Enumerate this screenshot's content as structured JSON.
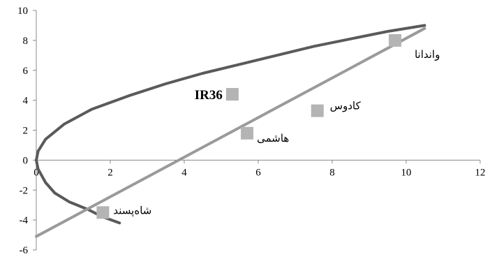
{
  "chart_data": {
    "type": "scatter",
    "title": "",
    "xlabel": "",
    "ylabel": "",
    "xlim": [
      0,
      12
    ],
    "ylim": [
      -6,
      10
    ],
    "xticks": [
      "0",
      "2",
      "4",
      "6",
      "8",
      "10",
      "12"
    ],
    "yticks": [
      "10",
      "8",
      "6",
      "4",
      "2",
      "0",
      "-2",
      "-4",
      "-6"
    ],
    "grid": false,
    "legend": "none",
    "points": [
      {
        "label": "واندانا",
        "x": 9.7,
        "y": 8.0
      },
      {
        "label": "IR36",
        "x": 5.3,
        "y": 4.4
      },
      {
        "label": "کادوس",
        "x": 7.6,
        "y": 3.3
      },
      {
        "label": "هاشمی",
        "x": 5.7,
        "y": 1.8
      },
      {
        "label": "شاه‌پسند",
        "x": 1.8,
        "y": -3.5
      }
    ],
    "series": [
      {
        "type": "curve",
        "color": "#5a5a5a",
        "x": [
          2.25,
          1.8,
          1.4,
          0.9,
          0.5,
          0.25,
          0.05,
          0,
          0.05,
          0.25,
          0.75,
          1.5,
          2.5,
          3.5,
          4.5,
          5.5,
          6.5,
          7.5,
          8.5,
          9.5,
          10.5
        ],
        "y": [
          -4.2,
          -3.8,
          -3.3,
          -2.8,
          -2.2,
          -1.5,
          -0.6,
          0,
          0.6,
          1.4,
          2.4,
          3.4,
          4.3,
          5.1,
          5.8,
          6.4,
          7.0,
          7.6,
          8.1,
          8.6,
          9.0
        ]
      },
      {
        "type": "line",
        "color": "#9a9a9a",
        "x": [
          0,
          10.5
        ],
        "y": [
          -5.1,
          8.8
        ]
      }
    ],
    "marker_color": "#b4b4b4"
  }
}
